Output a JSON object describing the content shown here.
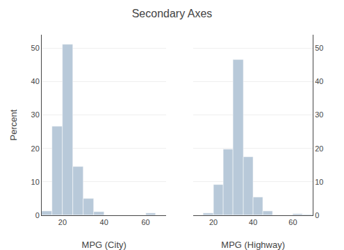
{
  "chart_data": [
    {
      "type": "histogram",
      "title": "Secondary Axes",
      "xlabel": "MPG (City)",
      "ylabel": "Percent",
      "bins": [
        10,
        15,
        20,
        25,
        30,
        35,
        40,
        45,
        50,
        55,
        60,
        65,
        70
      ],
      "values": [
        1.3,
        26.5,
        51.0,
        14.5,
        5.0,
        1.0,
        0.0,
        0.0,
        0.0,
        0.0,
        0.7,
        0.0
      ],
      "color": "#b8c9d9",
      "xlim": [
        10,
        70
      ],
      "xticks": [
        20,
        40,
        60
      ],
      "ylim": [
        0,
        54
      ],
      "yticks": [
        0,
        10,
        20,
        30,
        40,
        50
      ],
      "grid": "y"
    },
    {
      "type": "histogram",
      "xlabel": "MPG (Highway)",
      "bins": [
        10,
        15,
        20,
        25,
        30,
        35,
        40,
        45,
        50,
        55,
        60,
        65,
        70
      ],
      "values": [
        0.0,
        0.7,
        9.2,
        19.7,
        46.5,
        17.5,
        5.3,
        1.2,
        0.0,
        0.0,
        0.4,
        0.2
      ],
      "color": "#b8c9d9",
      "xlim": [
        10,
        70
      ],
      "xticks": [
        20,
        40,
        60
      ],
      "ylim": [
        0,
        54
      ],
      "yticks": [
        0,
        10,
        20,
        30,
        40,
        50
      ],
      "grid": "y"
    }
  ]
}
